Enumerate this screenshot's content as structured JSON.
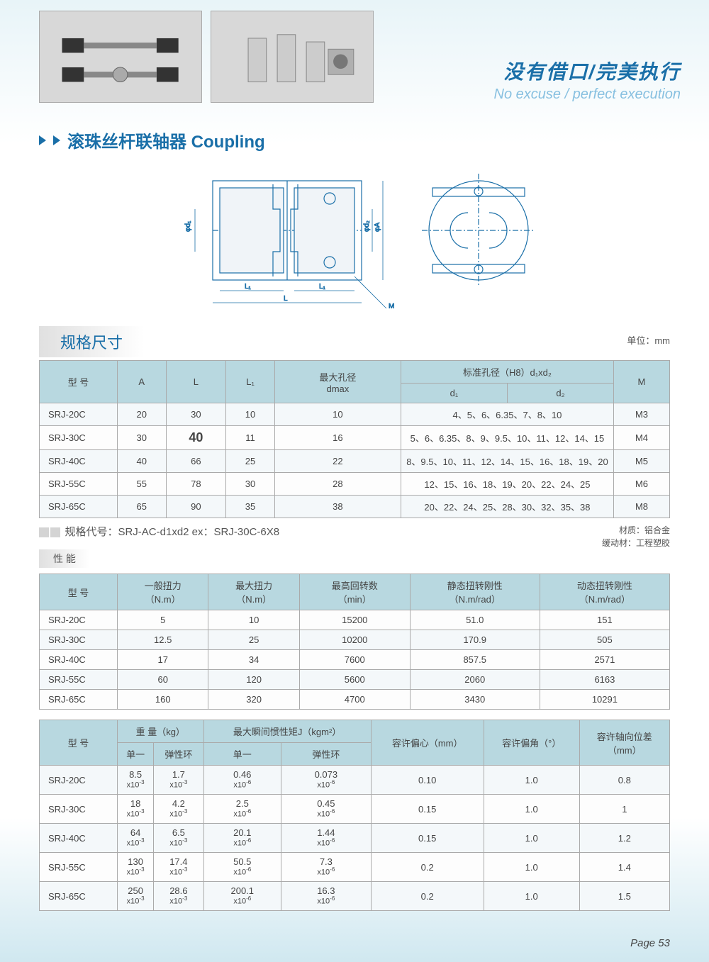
{
  "slogan_cn": "没有借口/完美执行",
  "slogan_en": "No excuse / perfect execution",
  "main_title": "滚珠丝杆联轴器  Coupling",
  "sec1_title": "规格尺寸",
  "unit_label": "单位：mm",
  "table1": {
    "headers": {
      "model": "型 号",
      "a": "A",
      "l": "L",
      "l1": "L₁",
      "dmax_top": "最大孔径",
      "dmax_bot": "dmax",
      "bore_top": "标准孔径（H8）d₁xd₂",
      "d1": "d₁",
      "d2": "d₂",
      "m": "M"
    },
    "rows": [
      {
        "model": "SRJ-20C",
        "a": "20",
        "l": "30",
        "l1": "10",
        "dmax": "10",
        "bore": "4、5、6、6.35、7、8、10",
        "m": "M3"
      },
      {
        "model": "SRJ-30C",
        "a": "30",
        "l": "40",
        "l1": "11",
        "dmax": "16",
        "bore": "5、6、6.35、8、9、9.5、10、11、12、14、15",
        "m": "M4"
      },
      {
        "model": "SRJ-40C",
        "a": "40",
        "l": "66",
        "l1": "25",
        "dmax": "22",
        "bore": "8、9.5、10、11、12、14、15、16、18、19、20",
        "m": "M5"
      },
      {
        "model": "SRJ-55C",
        "a": "55",
        "l": "78",
        "l1": "30",
        "dmax": "28",
        "bore": "12、15、16、18、19、20、22、24、25",
        "m": "M6"
      },
      {
        "model": "SRJ-65C",
        "a": "65",
        "l": "90",
        "l1": "35",
        "dmax": "38",
        "bore": "20、22、24、25、28、30、32、35、38",
        "m": "M8"
      }
    ]
  },
  "spec_code_label": "规格代号：",
  "spec_code": "SRJ-AC-d1xd2  ex：SRJ-30C-6X8",
  "material_label": "材质：",
  "material": "铝合金",
  "damping_label": "缓动材：",
  "damping": "工程塑胶",
  "perf_title": "性 能",
  "table2": {
    "headers": {
      "model": "型 号",
      "nom": "一般扭力",
      "nom_u": "（N.m）",
      "max": "最大扭力",
      "max_u": "（N.m）",
      "rpm": "最高回转数",
      "rpm_u": "（min）",
      "stat": "静态扭转刚性",
      "stat_u": "（N.m/rad）",
      "dyn": "动态扭转刚性",
      "dyn_u": "（N.m/rad）"
    },
    "rows": [
      {
        "model": "SRJ-20C",
        "nom": "5",
        "max": "10",
        "rpm": "15200",
        "stat": "51.0",
        "dyn": "151"
      },
      {
        "model": "SRJ-30C",
        "nom": "12.5",
        "max": "25",
        "rpm": "10200",
        "stat": "170.9",
        "dyn": "505"
      },
      {
        "model": "SRJ-40C",
        "nom": "17",
        "max": "34",
        "rpm": "7600",
        "stat": "857.5",
        "dyn": "2571"
      },
      {
        "model": "SRJ-55C",
        "nom": "60",
        "max": "120",
        "rpm": "5600",
        "stat": "2060",
        "dyn": "6163"
      },
      {
        "model": "SRJ-65C",
        "nom": "160",
        "max": "320",
        "rpm": "4700",
        "stat": "3430",
        "dyn": "10291"
      }
    ]
  },
  "table3": {
    "headers": {
      "model": "型 号",
      "wt": "重 量（kg）",
      "inertia": "最大瞬间惯性矩J（kgm²）",
      "single": "单一",
      "elastic": "弹性环",
      "ecc": "容许偏心（mm）",
      "ang": "容许偏角（°）",
      "ax": "容许轴向位差",
      "ax_u": "（mm）"
    },
    "rows": [
      {
        "model": "SRJ-20C",
        "w1t": "8.5",
        "w1e": "-3",
        "w2t": "1.7",
        "w2e": "-3",
        "j1t": "0.46",
        "j1e": "-6",
        "j2t": "0.073",
        "j2e": "-6",
        "ecc": "0.10",
        "ang": "1.0",
        "ax": "0.8"
      },
      {
        "model": "SRJ-30C",
        "w1t": "18",
        "w1e": "-3",
        "w2t": "4.2",
        "w2e": "-3",
        "j1t": "2.5",
        "j1e": "-6",
        "j2t": "0.45",
        "j2e": "-6",
        "ecc": "0.15",
        "ang": "1.0",
        "ax": "1"
      },
      {
        "model": "SRJ-40C",
        "w1t": "64",
        "w1e": "-3",
        "w2t": "6.5",
        "w2e": "-3",
        "j1t": "20.1",
        "j1e": "-6",
        "j2t": "1.44",
        "j2e": "-6",
        "ecc": "0.15",
        "ang": "1.0",
        "ax": "1.2"
      },
      {
        "model": "SRJ-55C",
        "w1t": "130",
        "w1e": "-3",
        "w2t": "17.4",
        "w2e": "-3",
        "j1t": "50.5",
        "j1e": "-6",
        "j2t": "7.3",
        "j2e": "-6",
        "ecc": "0.2",
        "ang": "1.0",
        "ax": "1.4"
      },
      {
        "model": "SRJ-65C",
        "w1t": "250",
        "w1e": "-3",
        "w2t": "28.6",
        "w2e": "-3",
        "j1t": "200.1",
        "j1e": "-6",
        "j2t": "16.3",
        "j2e": "-6",
        "ecc": "0.2",
        "ang": "1.0",
        "ax": "1.5"
      }
    ]
  },
  "page_num": "Page 53",
  "diagram_labels": {
    "d1": "φd₁",
    "d2": "φd₂",
    "a": "φA",
    "l1": "L₁",
    "l": "L",
    "m": "M"
  }
}
